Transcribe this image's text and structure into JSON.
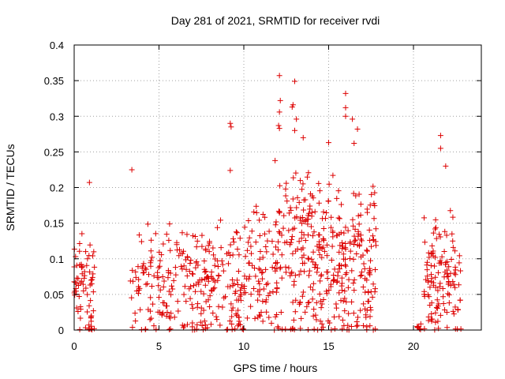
{
  "chart_data": {
    "type": "scatter",
    "title": "Day 281 of 2021, SRMTID for receiver rvdi",
    "xlabel": "GPS time / hours",
    "ylabel": "SRMTID / TECUs",
    "xlim": [
      0,
      24
    ],
    "ylim": [
      0,
      0.4
    ],
    "xticks": [
      0,
      5,
      10,
      15,
      20
    ],
    "xtick_labels": [
      "0",
      "5",
      "10",
      "15",
      "20"
    ],
    "yticks": [
      0,
      0.05,
      0.1,
      0.15,
      0.2,
      0.25,
      0.3,
      0.35,
      0.4
    ],
    "ytick_labels": [
      "0",
      "0.05",
      "0.1",
      "0.15",
      "0.2",
      "0.25",
      "0.3",
      "0.35",
      "0.4"
    ],
    "grid": true,
    "marker": "+",
    "color": "#dd0000",
    "segments": [
      {
        "x_start": 0.0,
        "x_end": 1.2,
        "density": 70,
        "y_max": 0.15
      },
      {
        "x_start": 3.3,
        "x_end": 6.8,
        "density": 120,
        "y_max": 0.16
      },
      {
        "x_start": 6.8,
        "x_end": 9.3,
        "density": 110,
        "y_max": 0.16
      },
      {
        "x_start": 9.3,
        "x_end": 11.8,
        "density": 110,
        "y_max": 0.18
      },
      {
        "x_start": 11.8,
        "x_end": 14.0,
        "density": 130,
        "y_max": 0.25
      },
      {
        "x_start": 14.0,
        "x_end": 16.0,
        "density": 130,
        "y_max": 0.23
      },
      {
        "x_start": 16.0,
        "x_end": 17.8,
        "density": 110,
        "y_max": 0.22
      },
      {
        "x_start": 20.2,
        "x_end": 20.6,
        "density": 5,
        "y_max": 0.01
      },
      {
        "x_start": 20.6,
        "x_end": 22.8,
        "density": 120,
        "y_max": 0.18
      }
    ],
    "outliers": [
      {
        "x": 0.9,
        "y": 0.207
      },
      {
        "x": 3.4,
        "y": 0.225
      },
      {
        "x": 9.2,
        "y": 0.29
      },
      {
        "x": 9.25,
        "y": 0.285
      },
      {
        "x": 9.2,
        "y": 0.224
      },
      {
        "x": 12.1,
        "y": 0.357
      },
      {
        "x": 12.15,
        "y": 0.322
      },
      {
        "x": 12.1,
        "y": 0.306
      },
      {
        "x": 12.05,
        "y": 0.287
      },
      {
        "x": 12.1,
        "y": 0.283
      },
      {
        "x": 13.0,
        "y": 0.349
      },
      {
        "x": 12.9,
        "y": 0.316
      },
      {
        "x": 12.85,
        "y": 0.313
      },
      {
        "x": 13.0,
        "y": 0.28
      },
      {
        "x": 13.1,
        "y": 0.296
      },
      {
        "x": 16.0,
        "y": 0.332
      },
      {
        "x": 16.0,
        "y": 0.312
      },
      {
        "x": 16.0,
        "y": 0.3
      },
      {
        "x": 16.4,
        "y": 0.296
      },
      {
        "x": 16.5,
        "y": 0.262
      },
      {
        "x": 16.7,
        "y": 0.282
      },
      {
        "x": 15.0,
        "y": 0.263
      },
      {
        "x": 21.6,
        "y": 0.273
      },
      {
        "x": 21.6,
        "y": 0.255
      },
      {
        "x": 21.9,
        "y": 0.23
      },
      {
        "x": 13.5,
        "y": 0.27
      }
    ]
  }
}
